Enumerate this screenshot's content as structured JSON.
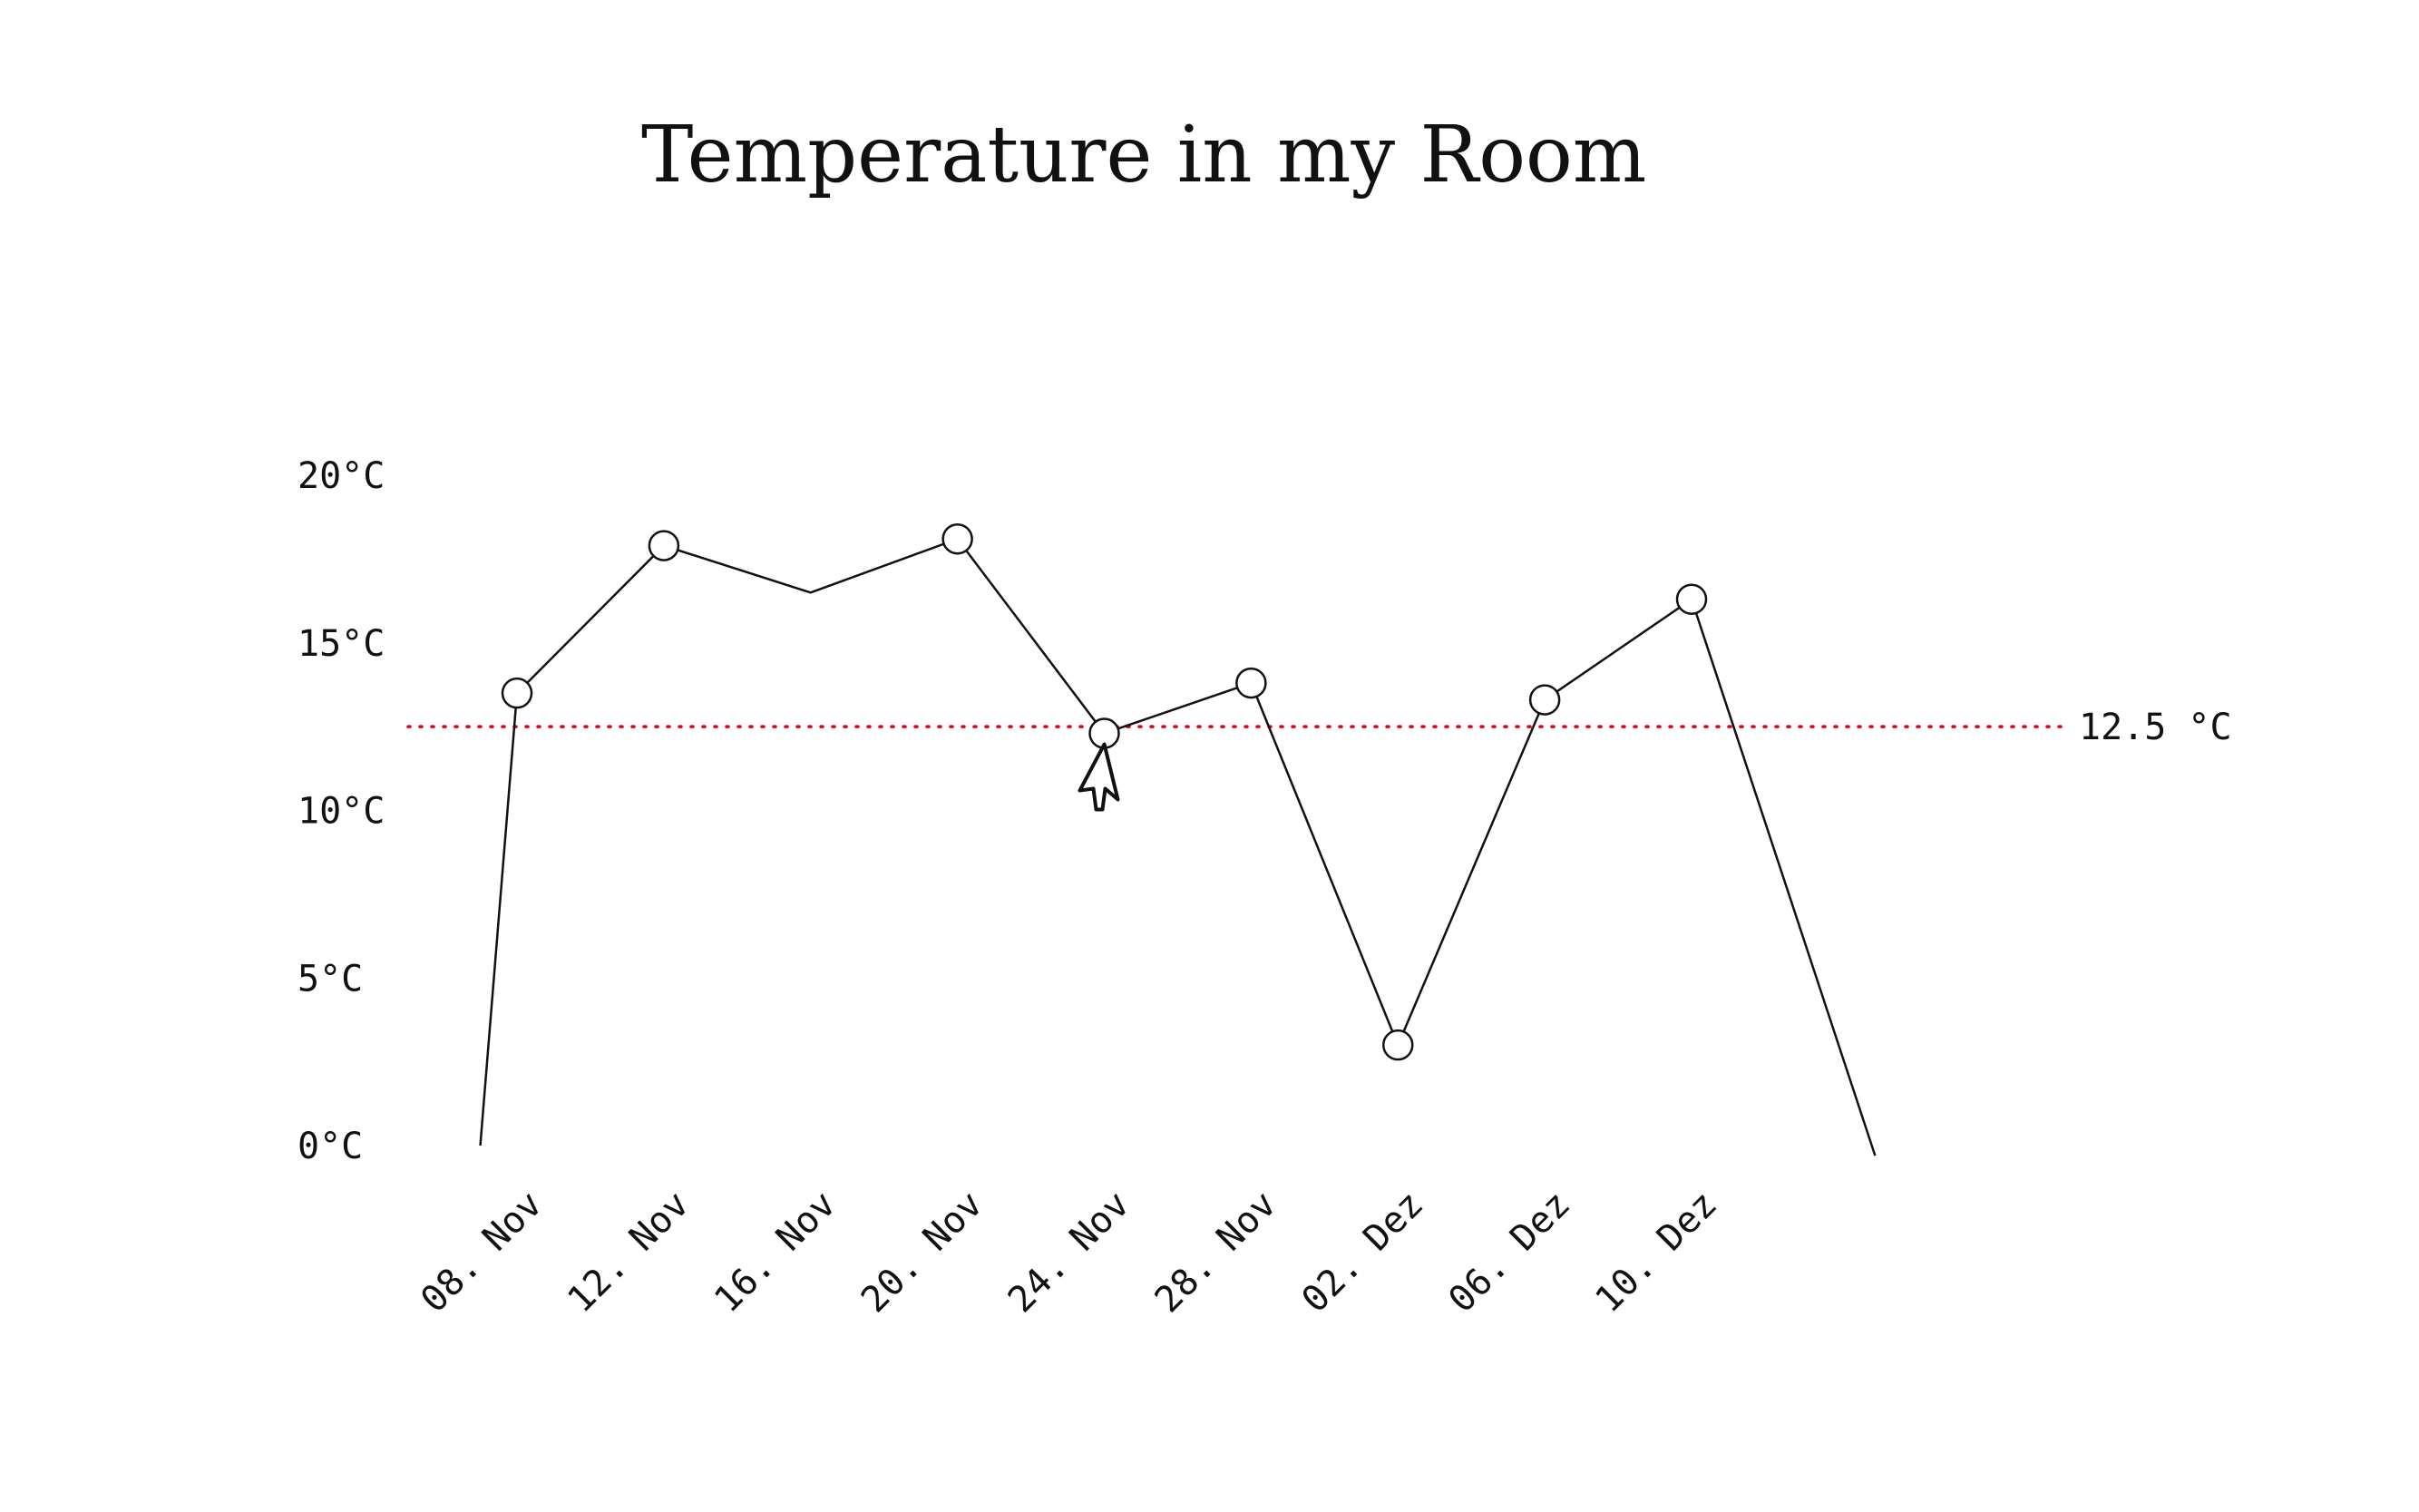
{
  "chart_data": {
    "type": "line",
    "title": "Temperature in my Room",
    "xlabel": "",
    "ylabel": "",
    "x_axis": {
      "type": "date",
      "tick_dates": [
        "2023-11-08",
        "2023-11-12",
        "2023-11-16",
        "2023-11-20",
        "2023-11-24",
        "2023-11-28",
        "2023-12-02",
        "2023-12-06",
        "2023-12-10"
      ],
      "tick_labels": [
        "08. Nov",
        "12. Nov",
        "16. Nov",
        "20. Nov",
        "24. Nov",
        "28. Nov",
        "02. Dez",
        "06. Dez",
        "10. Dez"
      ],
      "range": [
        "2023-11-05",
        "2023-12-25"
      ]
    },
    "y_axis": {
      "ticks": [
        0,
        5,
        10,
        15,
        20
      ],
      "tick_labels": [
        "0°C",
        "5°C",
        "10°C",
        "15°C",
        "20°C"
      ],
      "range": [
        0,
        20
      ]
    },
    "grid": false,
    "series": [
      {
        "color": "#111111",
        "points": [
          {
            "x": "2023-11-07",
            "y": 0,
            "marker": false
          },
          {
            "x": "2023-11-08",
            "y": 13.5,
            "marker": true
          },
          {
            "x": "2023-11-12",
            "y": 17.9,
            "marker": true
          },
          {
            "x": "2023-11-16",
            "y": 16.5,
            "marker": false
          },
          {
            "x": "2023-11-20",
            "y": 18.1,
            "marker": true
          },
          {
            "x": "2023-11-24",
            "y": 12.3,
            "marker": true
          },
          {
            "x": "2023-11-28",
            "y": 13.8,
            "marker": true
          },
          {
            "x": "2023-12-02",
            "y": 3.0,
            "marker": true
          },
          {
            "x": "2023-12-06",
            "y": 13.3,
            "marker": true
          },
          {
            "x": "2023-12-10",
            "y": 16.3,
            "marker": true
          },
          {
            "x": "2023-12-15",
            "y": -0.3,
            "marker": false
          }
        ]
      }
    ],
    "reference_line": {
      "y": 12.5,
      "label": "12.5 °C",
      "color": "#e3000f",
      "style": "dotted"
    },
    "cursor": {
      "icon": "mouse-pointer-icon",
      "x": "2023-11-24",
      "y": 12.3
    }
  }
}
